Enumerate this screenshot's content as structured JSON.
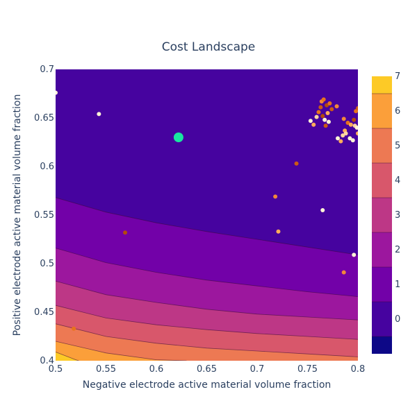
{
  "chart_data": {
    "type": "contour",
    "title": "Cost Landscape",
    "xlabel": "Negative electrode active material volume fraction",
    "ylabel": "Positive electrode active material volume fraction",
    "xlim": [
      0.5,
      0.8
    ],
    "ylim": [
      0.4,
      0.7
    ],
    "x_ticks": [
      "0.5",
      "0.55",
      "0.6",
      "0.65",
      "0.7",
      "0.75",
      "0.8"
    ],
    "y_ticks": [
      "0.4",
      "0.45",
      "0.5",
      "0.55",
      "0.6",
      "0.65",
      "0.7"
    ],
    "colorbar": {
      "range": [
        -0.5,
        7.5
      ],
      "ticks": [
        "0",
        "1",
        "2",
        "3",
        "4",
        "5",
        "6",
        "7"
      ],
      "band_colors": [
        "#0d0887",
        "#46039f",
        "#7201a8",
        "#9c179e",
        "#bd3786",
        "#d8576b",
        "#ed7953",
        "#fb9f3a",
        "#fdca26",
        "#f0f921"
      ]
    },
    "contours": [
      {
        "level": 1,
        "points": [
          [
            0.5,
            0.568
          ],
          [
            0.55,
            0.553
          ],
          [
            0.6,
            0.542
          ],
          [
            0.65,
            0.533
          ],
          [
            0.7,
            0.525
          ],
          [
            0.75,
            0.517
          ],
          [
            0.8,
            0.509
          ]
        ]
      },
      {
        "level": 2,
        "points": [
          [
            0.5,
            0.516
          ],
          [
            0.55,
            0.501
          ],
          [
            0.6,
            0.491
          ],
          [
            0.65,
            0.483
          ],
          [
            0.7,
            0.477
          ],
          [
            0.75,
            0.471
          ],
          [
            0.8,
            0.466
          ]
        ]
      },
      {
        "level": 3,
        "points": [
          [
            0.5,
            0.482
          ],
          [
            0.55,
            0.468
          ],
          [
            0.6,
            0.46
          ],
          [
            0.65,
            0.453
          ],
          [
            0.7,
            0.448
          ],
          [
            0.75,
            0.445
          ],
          [
            0.8,
            0.442
          ]
        ]
      },
      {
        "level": 4,
        "points": [
          [
            0.5,
            0.457
          ],
          [
            0.55,
            0.444
          ],
          [
            0.6,
            0.437
          ],
          [
            0.65,
            0.432
          ],
          [
            0.7,
            0.428
          ],
          [
            0.75,
            0.425
          ],
          [
            0.8,
            0.422
          ]
        ]
      },
      {
        "level": 5,
        "points": [
          [
            0.5,
            0.438
          ],
          [
            0.55,
            0.425
          ],
          [
            0.6,
            0.418
          ],
          [
            0.65,
            0.413
          ],
          [
            0.7,
            0.41
          ],
          [
            0.75,
            0.407
          ],
          [
            0.8,
            0.404
          ]
        ]
      },
      {
        "level": 6,
        "points": [
          [
            0.5,
            0.42
          ],
          [
            0.55,
            0.408
          ],
          [
            0.6,
            0.401
          ],
          [
            0.63,
            0.4
          ]
        ]
      },
      {
        "level": 7,
        "points": [
          [
            0.5,
            0.409
          ],
          [
            0.52,
            0.401
          ],
          [
            0.523,
            0.4
          ]
        ]
      }
    ],
    "optimum_point": {
      "x": 0.622,
      "y": 0.63,
      "color": "#19e6a0"
    },
    "samples": [
      {
        "x": 0.543,
        "y": 0.654,
        "color": "#fff3d6"
      },
      {
        "x": 0.569,
        "y": 0.532,
        "color": "#b44a0c"
      },
      {
        "x": 0.518,
        "y": 0.433,
        "color": "#e8731c"
      },
      {
        "x": 0.718,
        "y": 0.569,
        "color": "#f2873a"
      },
      {
        "x": 0.721,
        "y": 0.533,
        "color": "#ffad5a"
      },
      {
        "x": 0.739,
        "y": 0.603,
        "color": "#cc5a14"
      },
      {
        "x": 0.765,
        "y": 0.555,
        "color": "#fff3d6"
      },
      {
        "x": 0.786,
        "y": 0.491,
        "color": "#f2873a"
      },
      {
        "x": 0.796,
        "y": 0.509,
        "color": "#fff3d6"
      },
      {
        "x": 0.753,
        "y": 0.647,
        "color": "#fff3d6"
      },
      {
        "x": 0.756,
        "y": 0.643,
        "color": "#ffad5a"
      },
      {
        "x": 0.759,
        "y": 0.651,
        "color": "#ffd6a0"
      },
      {
        "x": 0.761,
        "y": 0.656,
        "color": "#e8731c"
      },
      {
        "x": 0.763,
        "y": 0.661,
        "color": "#cc5a14"
      },
      {
        "x": 0.764,
        "y": 0.667,
        "color": "#f2873a"
      },
      {
        "x": 0.765,
        "y": 0.652,
        "color": "#b44a0c"
      },
      {
        "x": 0.766,
        "y": 0.669,
        "color": "#e8731c"
      },
      {
        "x": 0.767,
        "y": 0.648,
        "color": "#fff3d6"
      },
      {
        "x": 0.768,
        "y": 0.642,
        "color": "#cc5a14"
      },
      {
        "x": 0.769,
        "y": 0.663,
        "color": "#b44a0c"
      },
      {
        "x": 0.77,
        "y": 0.655,
        "color": "#ffad5a"
      },
      {
        "x": 0.771,
        "y": 0.646,
        "color": "#fff3d6"
      },
      {
        "x": 0.772,
        "y": 0.665,
        "color": "#e8731c"
      },
      {
        "x": 0.774,
        "y": 0.659,
        "color": "#cc5a14"
      },
      {
        "x": 0.779,
        "y": 0.662,
        "color": "#f2873a"
      },
      {
        "x": 0.78,
        "y": 0.629,
        "color": "#fff3d6"
      },
      {
        "x": 0.783,
        "y": 0.626,
        "color": "#ffad5a"
      },
      {
        "x": 0.785,
        "y": 0.632,
        "color": "#ffd6a0"
      },
      {
        "x": 0.786,
        "y": 0.649,
        "color": "#f2873a"
      },
      {
        "x": 0.787,
        "y": 0.637,
        "color": "#ffad5a"
      },
      {
        "x": 0.788,
        "y": 0.634,
        "color": "#ffd6a0"
      },
      {
        "x": 0.79,
        "y": 0.645,
        "color": "#e8731c"
      },
      {
        "x": 0.792,
        "y": 0.629,
        "color": "#fff3d6"
      },
      {
        "x": 0.793,
        "y": 0.643,
        "color": "#ffad5a"
      },
      {
        "x": 0.795,
        "y": 0.627,
        "color": "#fff3d6"
      },
      {
        "x": 0.796,
        "y": 0.648,
        "color": "#b44a0c"
      },
      {
        "x": 0.797,
        "y": 0.642,
        "color": "#ffd6a0"
      },
      {
        "x": 0.798,
        "y": 0.657,
        "color": "#e8731c"
      },
      {
        "x": 0.799,
        "y": 0.64,
        "color": "#fff3d6"
      },
      {
        "x": 0.8,
        "y": 0.66,
        "color": "#cc5a14"
      },
      {
        "x": 0.8,
        "y": 0.634,
        "color": "#ffad5a"
      },
      {
        "x": 0.5,
        "y": 0.676,
        "color": "#fff3d6"
      }
    ]
  }
}
